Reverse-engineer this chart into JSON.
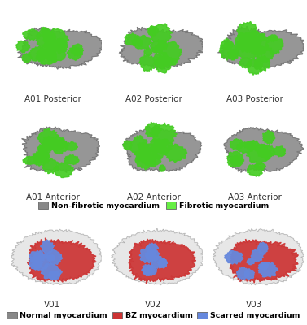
{
  "background_color": "#ffffff",
  "label_color": "#333333",
  "label_fontsize": 7.5,
  "legend_fontsize": 6.8,
  "row1_labels": [
    "A01 Posterior",
    "A02 Posterior",
    "A03 Posterior"
  ],
  "row2_labels": [
    "A01 Anterior",
    "A02 Anterior",
    "A03 Anterior"
  ],
  "row3_labels": [
    "V01",
    "V02",
    "V03"
  ],
  "legend1_items": [
    {
      "label": "Non-fibrotic myocardium",
      "color": "#888888"
    },
    {
      "label": "Fibrotic myocardium",
      "color": "#66ee44"
    }
  ],
  "legend2_items": [
    {
      "label": "Normal myocardium",
      "color": "#888888"
    },
    {
      "label": "BZ myocardium",
      "color": "#cc3333"
    },
    {
      "label": "Scarred myocardium",
      "color": "#6688dd"
    }
  ],
  "gray_heart": "#888888",
  "green_fibrotic": "#44cc22",
  "outer_shell": "#cccccc",
  "bz_red": "#cc3333",
  "scar_blue": "#6688dd"
}
